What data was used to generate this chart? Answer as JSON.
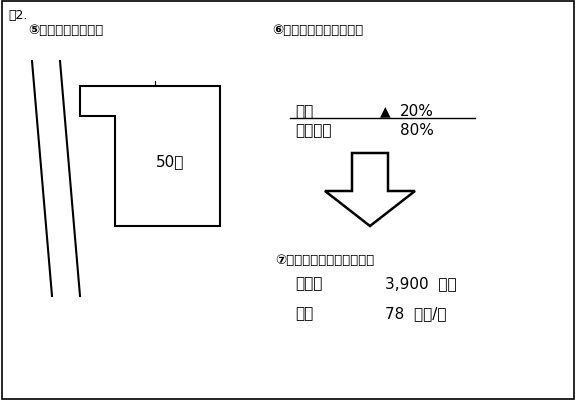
{
  "fig_label": "図2.",
  "section5_title": "⑤＜対象の不動産＞",
  "section6_title": "⑥＜対象不動産の補正＞",
  "section7_title": "⑦＜対象不動産の査定額＞",
  "land_label": "50坪",
  "correction_row1_label": "形状",
  "correction_row1_symbol": "▲",
  "correction_row1_value": "20%",
  "correction_row2_label": "個別格差",
  "correction_row2_value": "80%",
  "assessment_row1_label": "査定額",
  "assessment_row1_value": "3,900  万円",
  "assessment_row2_label": "単価",
  "assessment_row2_value": "78  万円/坪",
  "bg_color": "#ffffff",
  "border_color": "#000000",
  "text_color": "#000000"
}
